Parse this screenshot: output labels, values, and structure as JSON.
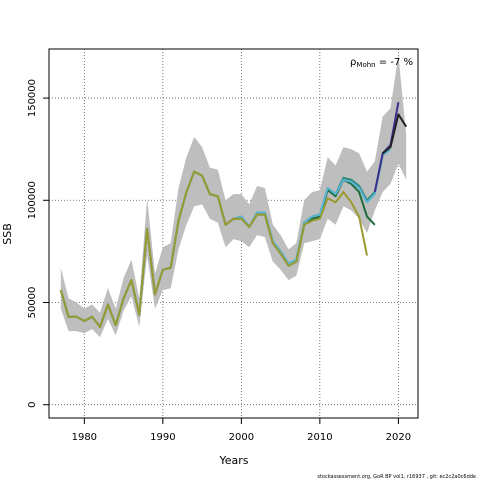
{
  "chart_data": {
    "type": "line",
    "xlabel": "Years",
    "ylabel": "SSB",
    "xlim": [
      1975.5,
      2022.5
    ],
    "ylim": [
      -6500,
      174000
    ],
    "x_ticks": [
      1980,
      1990,
      2000,
      2010,
      2020
    ],
    "y_ticks": [
      0,
      50000,
      100000,
      150000
    ],
    "grid": true,
    "grid_style": "dotted",
    "annotation": {
      "prefix": "ρ",
      "subscript": "Mohn",
      "suffix": " = -7 %"
    },
    "caption": "stockassessment.org, GoR BP vol1, r16937 , git: ec2c2a0c6dde",
    "confidence_band": {
      "color": "#bebebe",
      "x": [
        1977,
        1978,
        1979,
        1980,
        1981,
        1982,
        1983,
        1984,
        1985,
        1986,
        1987,
        1988,
        1989,
        1990,
        1991,
        1992,
        1993,
        1994,
        1995,
        1996,
        1997,
        1998,
        1999,
        2000,
        2001,
        2002,
        2003,
        2004,
        2005,
        2006,
        2007,
        2008,
        2009,
        2010,
        2011,
        2012,
        2013,
        2014,
        2015,
        2016,
        2017,
        2018,
        2019,
        2020,
        2021
      ],
      "upper": [
        67000,
        52000,
        50000,
        47000,
        49000,
        45000,
        57000,
        47000,
        62000,
        71000,
        52000,
        101000,
        64000,
        77000,
        79000,
        106000,
        121000,
        131000,
        126000,
        116000,
        115000,
        100000,
        103000,
        103000,
        98000,
        107000,
        106000,
        88000,
        83000,
        76000,
        79000,
        100000,
        104000,
        105000,
        121000,
        117000,
        126000,
        125000,
        123000,
        114000,
        119000,
        141000,
        145000,
        171000,
        132000
      ],
      "lower": [
        47000,
        36000,
        36000,
        35000,
        37000,
        33000,
        42000,
        34000,
        46000,
        53000,
        38000,
        73000,
        47000,
        56000,
        57000,
        76000,
        88000,
        97000,
        98000,
        91000,
        89000,
        77000,
        81000,
        80000,
        77000,
        83000,
        82000,
        70000,
        66000,
        61000,
        63000,
        79000,
        80000,
        81000,
        91000,
        88000,
        97000,
        95000,
        91000,
        84000,
        95000,
        104000,
        108000,
        118000,
        110000
      ]
    },
    "series": [
      {
        "color": "#1e6b3c",
        "x": [
          1977,
          1978,
          1979,
          1980,
          1981,
          1982,
          1983,
          1984,
          1985,
          1986,
          1987,
          1988,
          1989,
          1990,
          1991,
          1992,
          1993,
          1994,
          1995,
          1996,
          1997,
          1998,
          1999,
          2000,
          2001,
          2002,
          2003,
          2004,
          2005,
          2006,
          2007,
          2008,
          2009,
          2010,
          2011,
          2012,
          2013,
          2014,
          2015,
          2016,
          2017
        ],
        "values": [
          56000,
          43000,
          43000,
          41000,
          43000,
          38000,
          49000,
          39000,
          52000,
          61000,
          44000,
          86000,
          54000,
          66000,
          67000,
          90000,
          104000,
          114000,
          112000,
          103000,
          102000,
          88000,
          91000,
          91000,
          87000,
          93000,
          93000,
          79000,
          74000,
          68000,
          70000,
          88000,
          91000,
          92000,
          105000,
          102000,
          110000,
          108000,
          104000,
          92000,
          88000
        ]
      },
      {
        "color": "#2a8a7a",
        "x": [
          1977,
          1978,
          1979,
          1980,
          1981,
          1982,
          1983,
          1984,
          1985,
          1986,
          1987,
          1988,
          1989,
          1990,
          1991,
          1992,
          1993,
          1994,
          1995,
          1996,
          1997,
          1998,
          1999,
          2000,
          2001,
          2002,
          2003,
          2004,
          2005,
          2006,
          2007,
          2008,
          2009,
          2010,
          2011,
          2012,
          2013,
          2014,
          2015,
          2016,
          2017,
          2018
        ],
        "values": [
          56000,
          43000,
          43000,
          41000,
          43000,
          38000,
          49000,
          39000,
          52000,
          61000,
          44000,
          86000,
          54000,
          66000,
          67000,
          90000,
          104000,
          114000,
          112000,
          103000,
          102000,
          88000,
          91000,
          92000,
          87000,
          94000,
          94000,
          80000,
          75000,
          69000,
          71000,
          89000,
          92000,
          93000,
          106000,
          103000,
          111000,
          110000,
          107000,
          100000,
          104000,
          122000
        ]
      },
      {
        "color": "#5ab4d0",
        "x": [
          1977,
          1978,
          1979,
          1980,
          1981,
          1982,
          1983,
          1984,
          1985,
          1986,
          1987,
          1988,
          1989,
          1990,
          1991,
          1992,
          1993,
          1994,
          1995,
          1996,
          1997,
          1998,
          1999,
          2000,
          2001,
          2002,
          2003,
          2004,
          2005,
          2006,
          2007,
          2008,
          2009,
          2010,
          2011,
          2012,
          2013,
          2014,
          2015,
          2016,
          2017,
          2018,
          2019
        ],
        "values": [
          56000,
          43000,
          43000,
          41000,
          43000,
          38000,
          49000,
          39000,
          52000,
          61000,
          44000,
          86000,
          54000,
          66000,
          67000,
          90000,
          104000,
          114000,
          112000,
          103000,
          102000,
          88000,
          91000,
          92000,
          87000,
          94000,
          94000,
          80000,
          75000,
          69000,
          71000,
          89000,
          92000,
          93000,
          106000,
          103000,
          110000,
          109000,
          106000,
          99000,
          103000,
          122000,
          125000
        ]
      },
      {
        "color": "#3a2f8c",
        "x": [
          2017,
          2018,
          2019,
          2020
        ],
        "values": [
          104000,
          123000,
          127000,
          148000
        ]
      },
      {
        "color": "#222222",
        "x": [
          2018,
          2019,
          2020,
          2021
        ],
        "values": [
          123000,
          126000,
          142000,
          136000
        ]
      },
      {
        "color": "#9a9a30",
        "x": [
          1977,
          1978,
          1979,
          1980,
          1981,
          1982,
          1983,
          1984,
          1985,
          1986,
          1987,
          1988,
          1989,
          1990,
          1991,
          1992,
          1993,
          1994,
          1995,
          1996,
          1997,
          1998,
          1999,
          2000,
          2001,
          2002,
          2003,
          2004,
          2005,
          2006,
          2007,
          2008,
          2009,
          2010,
          2011,
          2012,
          2013,
          2014,
          2015,
          2016
        ],
        "values": [
          56000,
          43000,
          43000,
          41000,
          43000,
          38000,
          49000,
          39000,
          52000,
          61000,
          44000,
          86000,
          54000,
          66000,
          67000,
          90000,
          104000,
          114000,
          112000,
          103000,
          102000,
          88000,
          91000,
          91000,
          87000,
          93000,
          93000,
          79000,
          74000,
          68000,
          70000,
          88000,
          90000,
          91000,
          101000,
          99000,
          104000,
          99000,
          92000,
          73000
        ]
      }
    ]
  }
}
